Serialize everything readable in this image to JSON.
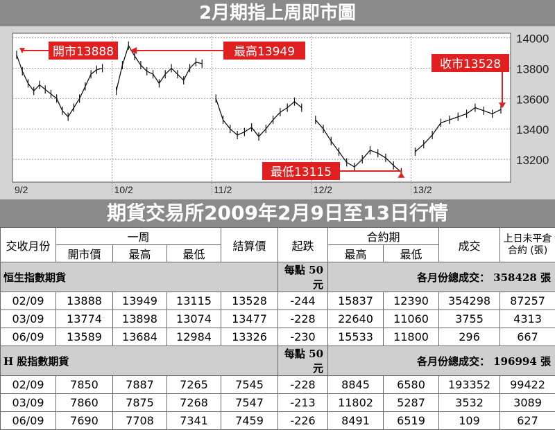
{
  "chart_title": "2月期指上周即市圖",
  "table_title": "期貨交易所2009年2月9日至13日行情",
  "chart_data": {
    "type": "line",
    "ylim": [
      13050,
      14030
    ],
    "yticks": [
      14000,
      13800,
      13600,
      13400,
      13200
    ],
    "xticks": [
      "9/2",
      "10/2",
      "11/2",
      "12/2",
      "13/2"
    ],
    "days": [
      [
        13888,
        13780,
        13700,
        13650,
        13690,
        13660,
        13630,
        13600,
        13520,
        13480,
        13540,
        13600,
        13680,
        13760,
        13790,
        13800
      ],
      [
        13650,
        13820,
        13949,
        13880,
        13820,
        13780,
        13760,
        13700,
        13760,
        13800,
        13760,
        13720,
        13800,
        13840,
        13830
      ],
      [
        13600,
        13460,
        13400,
        13360,
        13380,
        13410,
        13350,
        13400,
        13460,
        13510,
        13540,
        13580,
        13540
      ],
      [
        13460,
        13400,
        13320,
        13250,
        13180,
        13150,
        13200,
        13260,
        13240,
        13210,
        13160,
        13115
      ],
      [
        13250,
        13300,
        13360,
        13440,
        13460,
        13480,
        13500,
        13540,
        13520,
        13500,
        13528
      ]
    ],
    "annotations": [
      {
        "label": "開市13888"
      },
      {
        "label": "最高13949"
      },
      {
        "label": "收市13528"
      },
      {
        "label": "最低13115"
      }
    ]
  },
  "table": {
    "head1": {
      "month": "交收月份",
      "week": "一周",
      "settle": "結算價",
      "change": "起跌",
      "contract": "合約期",
      "volume": "成交",
      "oi": "上日未平倉合約 (張)"
    },
    "head2": {
      "open": "開市價",
      "high": "最高",
      "low": "最低",
      "c_high": "最高",
      "c_low": "最低"
    },
    "sections": [
      {
        "name": "恒生指數期貨",
        "point": "每點 50 元",
        "total": "各月份總成交： 358428 張",
        "rows": [
          [
            "02/09",
            "13888",
            "13949",
            "13115",
            "13528",
            "-244",
            "15837",
            "12390",
            "354298",
            "87257"
          ],
          [
            "03/09",
            "13774",
            "13898",
            "13074",
            "13477",
            "-228",
            "22640",
            "11060",
            "3755",
            "4313"
          ],
          [
            "06/09",
            "13589",
            "13684",
            "12984",
            "13326",
            "-230",
            "15533",
            "11800",
            "296",
            "667"
          ]
        ]
      },
      {
        "name": "H 股指數期貨",
        "point": "每點 50 元",
        "total": "各月份總成交： 196994 張",
        "rows": [
          [
            "02/09",
            "7850",
            "7887",
            "7265",
            "7545",
            "-228",
            "8845",
            "6580",
            "193352",
            "99422"
          ],
          [
            "03/09",
            "7860",
            "7875",
            "7268",
            "7547",
            "-213",
            "11802",
            "5287",
            "3532",
            "3089"
          ],
          [
            "06/09",
            "7690",
            "7708",
            "7341",
            "7459",
            "-226",
            "8491",
            "6519",
            "109",
            "627"
          ]
        ]
      }
    ]
  }
}
